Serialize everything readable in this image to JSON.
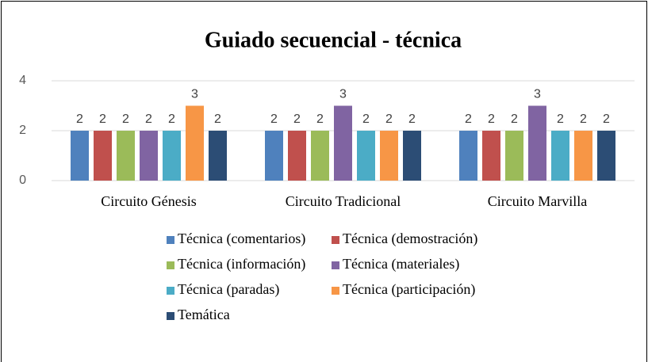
{
  "chart_data": {
    "type": "bar",
    "title": "Guiado secuencial - técnica",
    "categories": [
      "Circuito Génesis",
      "Circuito Tradicional",
      "Circuito Marvilla"
    ],
    "series": [
      {
        "name": "Técnica (comentarios)",
        "color": "#4f81bd",
        "values": [
          2,
          2,
          2
        ]
      },
      {
        "name": "Técnica (demostración)",
        "color": "#c0504d",
        "values": [
          2,
          2,
          2
        ]
      },
      {
        "name": "Técnica (información)",
        "color": "#9bbb59",
        "values": [
          2,
          2,
          2
        ]
      },
      {
        "name": "Técnica (materiales)",
        "color": "#8064a2",
        "values": [
          2,
          3,
          3
        ]
      },
      {
        "name": "Técnica (paradas)",
        "color": "#4bacc6",
        "values": [
          2,
          2,
          2
        ]
      },
      {
        "name": "Técnica (participación)",
        "color": "#f79646",
        "values": [
          3,
          2,
          2
        ]
      },
      {
        "name": "Temática",
        "color": "#2c4d75",
        "values": [
          2,
          2,
          2
        ]
      }
    ],
    "ylim": [
      0,
      4
    ],
    "yticks": [
      0,
      2,
      4
    ],
    "grid": true,
    "legend": "bottom"
  }
}
